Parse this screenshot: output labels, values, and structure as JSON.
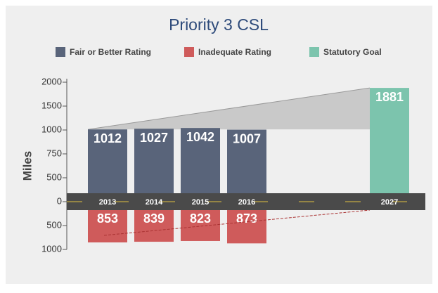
{
  "chart_data": {
    "type": "bar",
    "title": "Priority 3 CSL",
    "ylabel": "Miles",
    "categories": [
      "2013",
      "2014",
      "2015",
      "2016",
      "2027"
    ],
    "series": [
      {
        "name": "Fair or Better Rating",
        "color": "#59647a",
        "values": [
          1012,
          1027,
          1042,
          1007,
          null
        ]
      },
      {
        "name": "Inadequate Rating",
        "color": "#cf5b5b",
        "values": [
          -853,
          -839,
          -823,
          -873,
          null
        ],
        "value_labels": [
          "853",
          "839",
          "823",
          "873",
          null
        ]
      },
      {
        "name": "Statutory Goal",
        "color": "#7cc4ad",
        "values": [
          null,
          null,
          null,
          null,
          1881
        ]
      }
    ],
    "ylim": [
      -1000,
      2000
    ],
    "yticks": [
      2000,
      1500,
      1000,
      750,
      500,
      0,
      {
        "value": -500,
        "label": "500"
      },
      {
        "value": -1000,
        "label": "1000"
      }
    ]
  }
}
